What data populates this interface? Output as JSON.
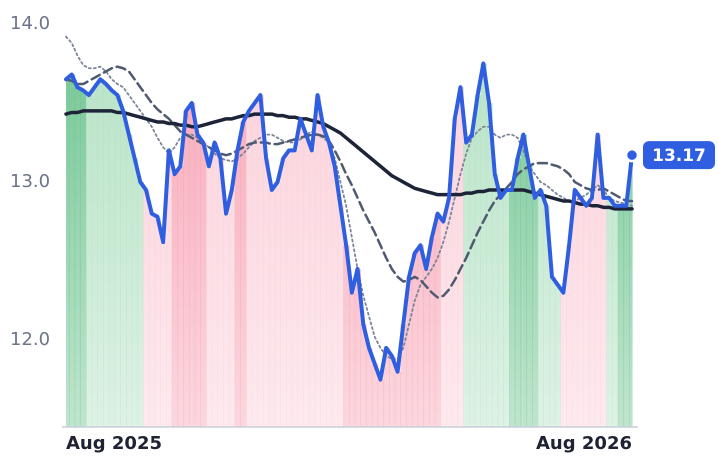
{
  "chart_data": {
    "type": "line",
    "categories": [
      "Aug 2025",
      null,
      null,
      null,
      null,
      null,
      null,
      null,
      null,
      null,
      null,
      null,
      null,
      null,
      null,
      null,
      null,
      null,
      null,
      null,
      null,
      null,
      null,
      null,
      null,
      null,
      null,
      null,
      null,
      null,
      null,
      null,
      null,
      null,
      null,
      null,
      null,
      null,
      null,
      null,
      null,
      null,
      null,
      null,
      null,
      null,
      null,
      null,
      null,
      null,
      null,
      null,
      null,
      null,
      null,
      null,
      null,
      null,
      null,
      null,
      null,
      null,
      null,
      null,
      null,
      null,
      null,
      null,
      null,
      null,
      null,
      null,
      null,
      null,
      null,
      null,
      null,
      null,
      null,
      null,
      null,
      null,
      null,
      null,
      null,
      null,
      null,
      null,
      null,
      null,
      null,
      null,
      null,
      null,
      null,
      null,
      null,
      null,
      null,
      "Aug 2026"
    ],
    "series": [
      {
        "color": "#2f5fe0",
        "style": "solid",
        "width": 4,
        "values": [
          13.65,
          13.68,
          13.6,
          13.58,
          13.55,
          13.6,
          13.65,
          13.62,
          13.58,
          13.55,
          13.45,
          13.3,
          13.15,
          13.0,
          12.95,
          12.8,
          12.78,
          12.62,
          13.2,
          13.05,
          13.1,
          13.45,
          13.5,
          13.3,
          13.25,
          13.1,
          13.25,
          13.15,
          12.8,
          12.95,
          13.2,
          13.38,
          13.45,
          13.5,
          13.55,
          13.15,
          12.95,
          13.0,
          13.15,
          13.2,
          13.2,
          13.4,
          13.3,
          13.2,
          13.55,
          13.35,
          13.25,
          13.1,
          12.85,
          12.6,
          12.3,
          12.45,
          12.1,
          11.95,
          11.85,
          11.75,
          11.95,
          11.9,
          11.8,
          12.1,
          12.4,
          12.55,
          12.6,
          12.45,
          12.65,
          12.8,
          12.75,
          12.9,
          13.4,
          13.6,
          13.25,
          13.3,
          13.55,
          13.75,
          13.5,
          13.05,
          12.9,
          12.95,
          12.95,
          13.15,
          13.3,
          13.1,
          12.9,
          12.95,
          12.85,
          12.4,
          12.35,
          12.3,
          12.6,
          12.95,
          12.9,
          12.85,
          12.9,
          13.3,
          12.9,
          12.9,
          12.85,
          12.85,
          12.85,
          13.17
        ]
      },
      {
        "color": "#1e2438",
        "style": "solid",
        "width": 3.5,
        "values": [
          13.43,
          13.44,
          13.44,
          13.45,
          13.45,
          13.45,
          13.45,
          13.45,
          13.45,
          13.44,
          13.44,
          13.43,
          13.42,
          13.41,
          13.4,
          13.39,
          13.38,
          13.38,
          13.37,
          13.37,
          13.36,
          13.36,
          13.35,
          13.35,
          13.36,
          13.37,
          13.38,
          13.39,
          13.4,
          13.4,
          13.41,
          13.42,
          13.42,
          13.43,
          13.43,
          13.43,
          13.43,
          13.42,
          13.42,
          13.41,
          13.41,
          13.4,
          13.4,
          13.39,
          13.38,
          13.37,
          13.35,
          13.33,
          13.31,
          13.28,
          13.25,
          13.22,
          13.19,
          13.16,
          13.13,
          13.1,
          13.07,
          13.04,
          13.02,
          13.0,
          12.98,
          12.96,
          12.95,
          12.94,
          12.93,
          12.92,
          12.92,
          12.92,
          12.92,
          12.92,
          12.93,
          12.93,
          12.94,
          12.94,
          12.95,
          12.95,
          12.95,
          12.95,
          12.95,
          12.95,
          12.95,
          12.94,
          12.93,
          12.92,
          12.91,
          12.9,
          12.89,
          12.88,
          12.88,
          12.87,
          12.86,
          12.86,
          12.85,
          12.85,
          12.84,
          12.84,
          12.83,
          12.83,
          12.83,
          12.83
        ]
      },
      {
        "color": "#4f5a70",
        "style": "dashed",
        "width": 2.5,
        "values": [
          13.65,
          13.64,
          13.62,
          13.62,
          13.64,
          13.66,
          13.68,
          13.7,
          13.72,
          13.73,
          13.72,
          13.7,
          13.65,
          13.6,
          13.55,
          13.5,
          13.46,
          13.43,
          13.4,
          13.36,
          13.32,
          13.3,
          13.28,
          13.26,
          13.24,
          13.22,
          13.2,
          13.18,
          13.17,
          13.18,
          13.2,
          13.22,
          13.24,
          13.25,
          13.25,
          13.25,
          13.24,
          13.24,
          13.25,
          13.26,
          13.27,
          13.28,
          13.29,
          13.3,
          13.3,
          13.29,
          13.26,
          13.2,
          13.13,
          13.05,
          12.98,
          12.9,
          12.82,
          12.75,
          12.68,
          12.6,
          12.52,
          12.45,
          12.4,
          12.37,
          12.38,
          12.4,
          12.38,
          12.34,
          12.3,
          12.27,
          12.28,
          12.32,
          12.38,
          12.45,
          12.52,
          12.6,
          12.68,
          12.75,
          12.82,
          12.88,
          12.92,
          12.96,
          13.0,
          13.05,
          13.08,
          13.1,
          13.12,
          13.12,
          13.12,
          13.11,
          13.1,
          13.08,
          13.05,
          13.0,
          12.98,
          12.96,
          12.95,
          12.95,
          12.96,
          12.94,
          12.92,
          12.9,
          12.88,
          12.88
        ]
      },
      {
        "color": "#7b8499",
        "style": "dotted",
        "width": 1.8,
        "values": [
          13.92,
          13.88,
          13.8,
          13.74,
          13.72,
          13.72,
          13.73,
          13.7,
          13.65,
          13.62,
          13.6,
          13.55,
          13.5,
          13.45,
          13.4,
          13.35,
          13.28,
          13.22,
          13.18,
          13.22,
          13.28,
          13.3,
          13.3,
          13.28,
          13.25,
          13.22,
          13.18,
          13.15,
          13.14,
          13.13,
          13.15,
          13.18,
          13.22,
          13.26,
          13.28,
          13.3,
          13.3,
          13.28,
          13.26,
          13.25,
          13.25,
          13.27,
          13.3,
          13.32,
          13.3,
          13.28,
          13.25,
          13.15,
          13.0,
          12.85,
          12.65,
          12.45,
          12.28,
          12.15,
          12.02,
          11.95,
          11.9,
          11.88,
          11.88,
          11.95,
          12.1,
          12.25,
          12.35,
          12.4,
          12.45,
          12.52,
          12.62,
          12.75,
          12.9,
          13.05,
          13.18,
          13.28,
          13.32,
          13.35,
          13.35,
          13.3,
          13.28,
          13.3,
          13.3,
          13.28,
          13.2,
          13.1,
          13.05,
          13.0,
          12.98,
          12.95,
          12.92,
          12.9,
          12.88,
          12.88,
          12.9,
          12.92,
          12.95,
          12.98,
          12.95,
          12.9,
          12.88,
          12.87,
          12.86,
          12.85
        ]
      }
    ],
    "area_colors": [
      "#72c593",
      "#72c593",
      "#72c593",
      "#72c593",
      "#b5e2c5",
      "#b5e2c5",
      "#b5e2c5",
      "#b5e2c5",
      "#b5e2c5",
      "#b5e2c5",
      "#b5e2c5",
      "#b5e2c5",
      "#b5e2c5",
      "#b5e2c5",
      "#fbd0da",
      "#fbd0da",
      "#fbd0da",
      "#fbd0da",
      "#fbd0da",
      "#f7a6b7",
      "#f7a6b7",
      "#f7a6b7",
      "#f7a6b7",
      "#f7a6b7",
      "#f7a6b7",
      "#fbd0da",
      "#fbd0da",
      "#fbd0da",
      "#fbd0da",
      "#fbd0da",
      "#f7a6b7",
      "#f7a6b7",
      "#fbd0da",
      "#fbd0da",
      "#fbd0da",
      "#fbd0da",
      "#fbd0da",
      "#fbd0da",
      "#fbd0da",
      "#fbd0da",
      "#fbd0da",
      "#fbd0da",
      "#fbd0da",
      "#fbd0da",
      "#fbd0da",
      "#fbd0da",
      "#fbd0da",
      "#fbd0da",
      "#fbd0da",
      "#f7a6b7",
      "#f7a6b7",
      "#f7a6b7",
      "#f7a6b7",
      "#f7a6b7",
      "#f7a6b7",
      "#f7a6b7",
      "#f7a6b7",
      "#f7a6b7",
      "#f7a6b7",
      "#f7a6b7",
      "#f7a6b7",
      "#f7a6b7",
      "#f7a6b7",
      "#f7a6b7",
      "#f7a6b7",
      "#f7a6b7",
      "#fbd0da",
      "#fbd0da",
      "#fbd0da",
      "#fbd0da",
      "#b5e2c5",
      "#b5e2c5",
      "#b5e2c5",
      "#b5e2c5",
      "#b5e2c5",
      "#b5e2c5",
      "#b5e2c5",
      "#b5e2c5",
      "#72c593",
      "#72c593",
      "#72c593",
      "#72c593",
      "#72c593",
      "#b5e2c5",
      "#b5e2c5",
      "#b5e2c5",
      "#b5e2c5",
      "#fbd0da",
      "#fbd0da",
      "#fbd0da",
      "#fbd0da",
      "#fbd0da",
      "#fbd0da",
      "#fbd0da",
      "#fbd0da",
      "#b5e2c5",
      "#b5e2c5",
      "#72c593",
      "#72c593",
      "#72c593"
    ],
    "ylim": [
      11.45,
      14.0
    ],
    "yticks": [
      {
        "value": 12,
        "label": "12.0"
      },
      {
        "value": 13,
        "label": "13.0"
      },
      {
        "value": 14,
        "label": "14.0"
      }
    ],
    "grid": false
  }
}
